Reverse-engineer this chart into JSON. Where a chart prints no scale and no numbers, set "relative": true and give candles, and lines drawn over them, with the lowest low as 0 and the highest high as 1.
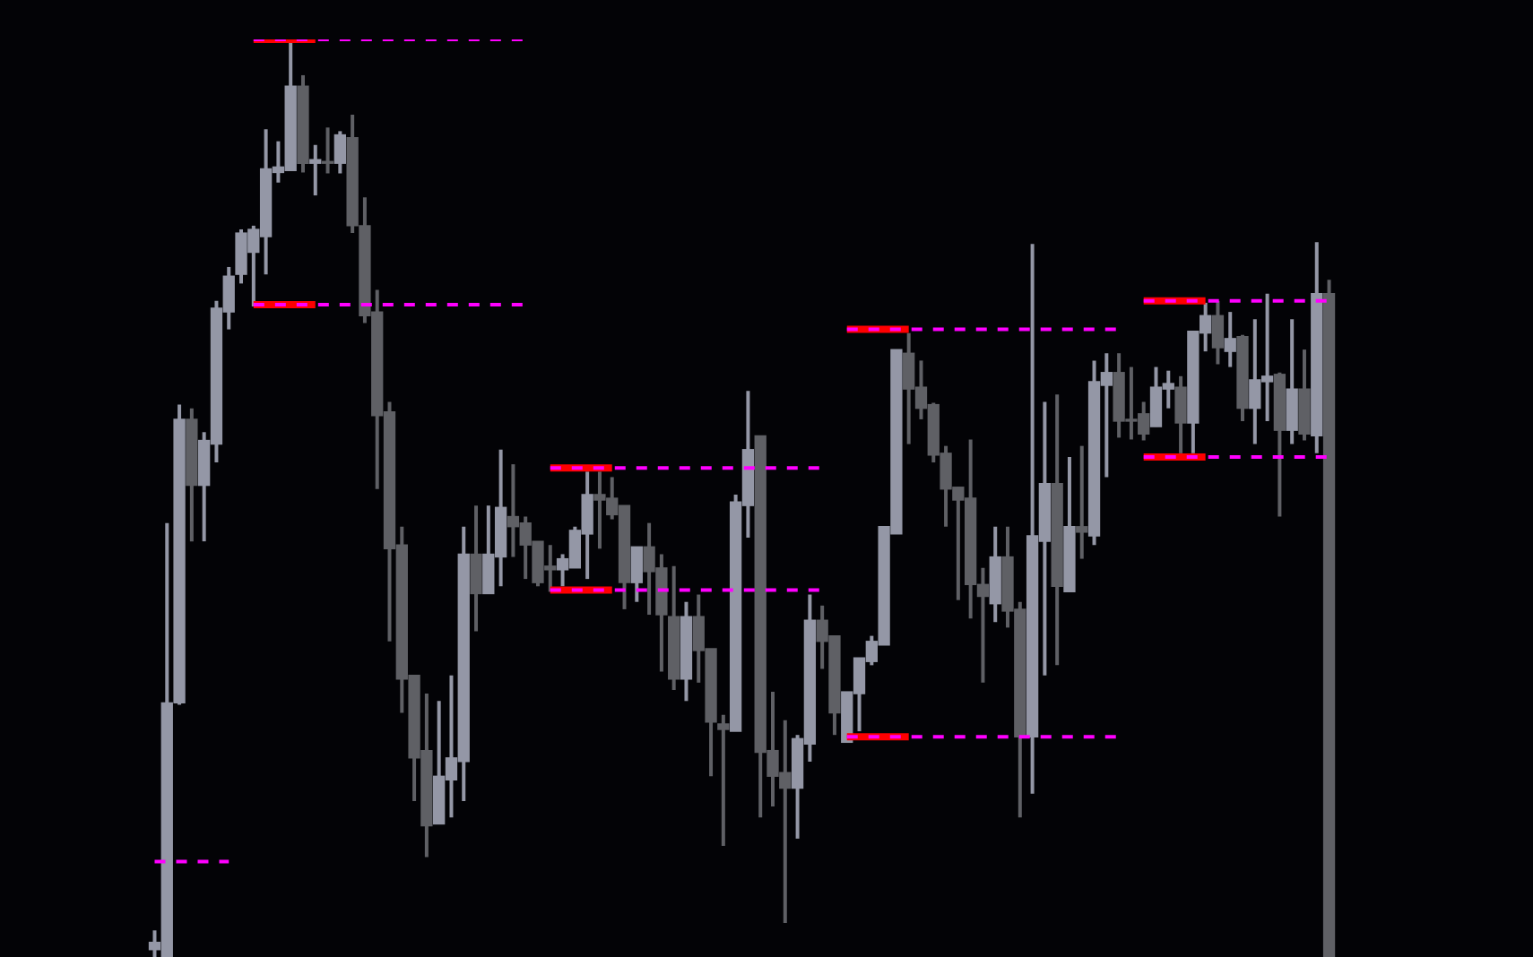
{
  "chart_data": {
    "type": "candlestick",
    "relative": true,
    "categories": [
      null,
      null,
      null,
      null,
      null,
      null,
      null,
      null,
      null,
      null,
      null,
      null,
      null,
      null,
      null,
      null,
      null,
      null,
      null,
      null,
      null,
      null,
      null,
      null,
      null,
      null,
      null,
      null,
      null,
      null,
      null,
      null,
      null,
      null,
      null,
      null,
      null,
      null,
      null,
      null,
      null,
      null,
      null,
      null,
      null,
      null,
      null,
      null,
      null,
      null,
      null,
      null,
      null,
      null,
      null,
      null,
      null,
      null,
      null,
      null,
      null,
      null,
      null,
      null,
      null,
      null,
      null,
      null,
      null,
      null,
      null,
      null,
      null,
      null,
      null,
      null,
      null,
      null,
      null,
      null,
      null,
      null,
      null,
      null,
      null,
      null,
      null,
      null,
      null,
      null,
      null,
      null,
      null,
      null,
      null,
      null
    ],
    "ohlc": [
      [
        0.008,
        0.029,
        0,
        0.016
      ],
      [
        0,
        0.473,
        0,
        0.277
      ],
      [
        0.277,
        0.602,
        0.275,
        0.586
      ],
      [
        0.586,
        0.598,
        0.453,
        0.514
      ],
      [
        0.514,
        0.572,
        0.453,
        0.563
      ],
      [
        0.559,
        0.715,
        0.539,
        0.707
      ],
      [
        0.703,
        0.752,
        0.684,
        0.742
      ],
      [
        0.744,
        0.793,
        0.734,
        0.789
      ],
      [
        0.768,
        0.797,
        0.709,
        0.793
      ],
      [
        0.785,
        0.902,
        0.744,
        0.859
      ],
      [
        0.855,
        0.889,
        0.844,
        0.861
      ],
      [
        0.857,
        1,
        0.857,
        0.949
      ],
      [
        0.949,
        0.961,
        0.855,
        0.865
      ],
      [
        0.865,
        0.885,
        0.83,
        0.869
      ],
      [
        0.867,
        0.904,
        0.854,
        0.865
      ],
      [
        0.865,
        0.9,
        0.854,
        0.896
      ],
      [
        0.893,
        0.918,
        0.789,
        0.797
      ],
      [
        0.797,
        0.828,
        0.691,
        0.699
      ],
      [
        0.703,
        0.727,
        0.51,
        0.59
      ],
      [
        0.594,
        0.605,
        0.344,
        0.445
      ],
      [
        0.449,
        0.469,
        0.266,
        0.303
      ],
      [
        0.307,
        0.307,
        0.17,
        0.217
      ],
      [
        0.225,
        0.287,
        0.109,
        0.143
      ],
      [
        0.145,
        0.279,
        0.145,
        0.197
      ],
      [
        0.193,
        0.307,
        0.152,
        0.217
      ],
      [
        0.213,
        0.469,
        0.17,
        0.439
      ],
      [
        0.439,
        0.492,
        0.355,
        0.396
      ],
      [
        0.396,
        0.492,
        0.396,
        0.439
      ],
      [
        0.436,
        0.553,
        0.404,
        0.49
      ],
      [
        0.48,
        0.537,
        0.436,
        0.469
      ],
      [
        0.473,
        0.48,
        0.412,
        0.449
      ],
      [
        0.453,
        0.453,
        0.404,
        0.408
      ],
      [
        0.426,
        0.449,
        0.398,
        0.422
      ],
      [
        0.422,
        0.439,
        0.404,
        0.434
      ],
      [
        0.424,
        0.469,
        0.424,
        0.465
      ],
      [
        0.461,
        0.529,
        0.412,
        0.504
      ],
      [
        0.504,
        0.529,
        0.445,
        0.498
      ],
      [
        0.5,
        0.523,
        0.477,
        0.482
      ],
      [
        0.492,
        0.492,
        0.379,
        0.408
      ],
      [
        0.408,
        0.447,
        0.387,
        0.447
      ],
      [
        0.447,
        0.473,
        0.373,
        0.42
      ],
      [
        0.424,
        0.439,
        0.311,
        0.373
      ],
      [
        0.371,
        0.426,
        0.291,
        0.303
      ],
      [
        0.303,
        0.387,
        0.279,
        0.371
      ],
      [
        0.371,
        0.395,
        0.299,
        0.334
      ],
      [
        0.336,
        0.336,
        0.197,
        0.256
      ],
      [
        0.254,
        0.264,
        0.121,
        0.248
      ],
      [
        0.246,
        0.504,
        0.246,
        0.496
      ],
      [
        0.492,
        0.617,
        0.457,
        0.553
      ],
      [
        0.568,
        0.568,
        0.152,
        0.223
      ],
      [
        0.225,
        0.289,
        0.164,
        0.197
      ],
      [
        0.201,
        0.258,
        0.037,
        0.184
      ],
      [
        0.184,
        0.242,
        0.129,
        0.238
      ],
      [
        0.232,
        0.395,
        0.213,
        0.367
      ],
      [
        0.367,
        0.383,
        0.314,
        0.344
      ],
      [
        0.35,
        0.35,
        0.242,
        0.266
      ],
      [
        0.234,
        0.289,
        0.234,
        0.289
      ],
      [
        0.287,
        0.326,
        0.246,
        0.326
      ],
      [
        0.322,
        0.35,
        0.318,
        0.344
      ],
      [
        0.34,
        0.469,
        0.34,
        0.469
      ],
      [
        0.461,
        0.662,
        0.461,
        0.662
      ],
      [
        0.658,
        0.68,
        0.559,
        0.619
      ],
      [
        0.621,
        0.65,
        0.586,
        0.598
      ],
      [
        0.602,
        0.604,
        0.539,
        0.547
      ],
      [
        0.549,
        0.557,
        0.469,
        0.51
      ],
      [
        0.512,
        0.512,
        0.389,
        0.498
      ],
      [
        0.5,
        0.564,
        0.369,
        0.406
      ],
      [
        0.406,
        0.424,
        0.299,
        0.393
      ],
      [
        0.385,
        0.469,
        0.365,
        0.436
      ],
      [
        0.436,
        0.469,
        0.359,
        0.377
      ],
      [
        0.379,
        0.387,
        0.152,
        0.24
      ],
      [
        0.24,
        0.777,
        0.178,
        0.459
      ],
      [
        0.453,
        0.605,
        0.307,
        0.516
      ],
      [
        0.516,
        0.613,
        0.318,
        0.404
      ],
      [
        0.398,
        0.545,
        0.398,
        0.469
      ],
      [
        0.469,
        0.557,
        0.434,
        0.463
      ],
      [
        0.459,
        0.65,
        0.449,
        0.627
      ],
      [
        0.623,
        0.658,
        0.523,
        0.637
      ],
      [
        0.637,
        0.658,
        0.566,
        0.584
      ],
      [
        0.586,
        0.643,
        0.564,
        0.584
      ],
      [
        0.592,
        0.605,
        0.563,
        0.57
      ],
      [
        0.578,
        0.643,
        0.578,
        0.621
      ],
      [
        0.619,
        0.639,
        0.598,
        0.625
      ],
      [
        0.621,
        0.633,
        0.549,
        0.582
      ],
      [
        0.582,
        0.682,
        0.549,
        0.682
      ],
      [
        0.68,
        0.713,
        0.66,
        0.699
      ],
      [
        0.699,
        0.715,
        0.646,
        0.664
      ],
      [
        0.66,
        0.703,
        0.643,
        0.674
      ],
      [
        0.676,
        0.678,
        0.584,
        0.598
      ],
      [
        0.598,
        0.695,
        0.559,
        0.629
      ],
      [
        0.627,
        0.723,
        0.584,
        0.633
      ],
      [
        0.635,
        0.637,
        0.48,
        0.574
      ],
      [
        0.574,
        0.695,
        0.559,
        0.619
      ],
      [
        0.619,
        0.662,
        0.563,
        0.57
      ],
      [
        0.568,
        0.779,
        0.549,
        0.723
      ],
      [
        0.723,
        0.738,
        0,
        0
      ]
    ],
    "colors": [
      "#9497a6",
      "#9497a6",
      "#9497a6",
      "#5f6065",
      "#9497a6",
      "#9497a6",
      "#9497a6",
      "#9497a6",
      "#9497a6",
      "#9497a6",
      "#9497a6",
      "#9497a6",
      "#5f6065",
      "#9497a6",
      "#5f6065",
      "#9497a6",
      "#5f6065",
      "#5f6065",
      "#5f6065",
      "#5f6065",
      "#5f6065",
      "#5f6065",
      "#5f6065",
      "#9497a6",
      "#9497a6",
      "#9497a6",
      "#5f6065",
      "#9497a6",
      "#9497a6",
      "#5f6065",
      "#5f6065",
      "#5f6065",
      "#5f6065",
      "#9497a6",
      "#9497a6",
      "#9497a6",
      "#5f6065",
      "#5f6065",
      "#5f6065",
      "#9497a6",
      "#5f6065",
      "#5f6065",
      "#5f6065",
      "#9497a6",
      "#5f6065",
      "#5f6065",
      "#5f6065",
      "#9497a6",
      "#9497a6",
      "#5f6065",
      "#5f6065",
      "#5f6065",
      "#9497a6",
      "#9497a6",
      "#5f6065",
      "#5f6065",
      "#9497a6",
      "#9497a6",
      "#9497a6",
      "#9497a6",
      "#9497a6",
      "#5f6065",
      "#5f6065",
      "#5f6065",
      "#5f6065",
      "#5f6065",
      "#5f6065",
      "#5f6065",
      "#9497a6",
      "#5f6065",
      "#5f6065",
      "#9497a6",
      "#9497a6",
      "#5f6065",
      "#9497a6",
      "#5f6065",
      "#9497a6",
      "#9497a6",
      "#5f6065",
      "#5f6065",
      "#5f6065",
      "#9497a6",
      "#9497a6",
      "#5f6065",
      "#9497a6",
      "#9497a6",
      "#5f6065",
      "#9497a6",
      "#5f6065",
      "#9497a6",
      "#9497a6",
      "#5f6065",
      "#9497a6",
      "#5f6065",
      "#9497a6",
      "#5f6065"
    ],
    "series": [
      {
        "type": "line",
        "color": "#ff00ff",
        "line_style": "dashed",
        "values": [
          0.104,
          0.104,
          0.104,
          0.104,
          0.104,
          0.104,
          0.104,
          null,
          1,
          1,
          1,
          1,
          1,
          1,
          1,
          1,
          1,
          1,
          1,
          1,
          1,
          1,
          1,
          1,
          1,
          1,
          1,
          1,
          1,
          1,
          1,
          null,
          0.533,
          0.533,
          0.533,
          0.533,
          0.533,
          0.533,
          0.533,
          0.533,
          0.533,
          0.533,
          0.533,
          0.533,
          0.533,
          0.533,
          0.533,
          0.533,
          0.533,
          0.533,
          0.533,
          0.533,
          0.533,
          0.533,
          0.533,
          null,
          0.684,
          0.684,
          0.684,
          0.684,
          0.684,
          0.684,
          0.684,
          0.684,
          0.684,
          0.684,
          0.684,
          0.684,
          0.684,
          0.684,
          0.684,
          0.684,
          0.684,
          0.684,
          0.684,
          0.684,
          0.684,
          0.684,
          0.684,
          null,
          0.715,
          0.715,
          0.715,
          0.715,
          0.715,
          0.715,
          0.715,
          0.715,
          0.715,
          0.715,
          0.715,
          0.715,
          0.715,
          0.715,
          0.715,
          0.715
        ]
      },
      {
        "type": "line",
        "color": "#ff00ff",
        "line_style": "dashed",
        "values": [
          null,
          null,
          null,
          null,
          null,
          null,
          null,
          null,
          0.711,
          0.711,
          0.711,
          0.711,
          0.711,
          0.711,
          0.711,
          0.711,
          0.711,
          0.711,
          0.711,
          0.711,
          0.711,
          0.711,
          0.711,
          0.711,
          0.711,
          0.711,
          0.711,
          0.711,
          0.711,
          0.711,
          0.711,
          null,
          0.4,
          0.4,
          0.4,
          0.4,
          0.4,
          0.4,
          0.4,
          0.4,
          0.4,
          0.4,
          0.4,
          0.4,
          0.4,
          0.4,
          0.4,
          0.4,
          0.4,
          0.4,
          0.4,
          0.4,
          0.4,
          0.4,
          0.4,
          null,
          0.24,
          0.24,
          0.24,
          0.24,
          0.24,
          0.24,
          0.24,
          0.24,
          0.24,
          0.24,
          0.24,
          0.24,
          0.24,
          0.24,
          0.24,
          0.24,
          0.24,
          0.24,
          0.24,
          0.24,
          0.24,
          0.24,
          0.24,
          null,
          0.545,
          0.545,
          0.545,
          0.545,
          0.545,
          0.545,
          0.545,
          0.545,
          0.545,
          0.545,
          0.545,
          0.545,
          0.545,
          0.545,
          0.545,
          0.545
        ]
      },
      {
        "type": "line",
        "color": "#ff0000",
        "line_style": "solid",
        "values": [
          null,
          null,
          null,
          null,
          null,
          null,
          null,
          null,
          1,
          1,
          1,
          1,
          1,
          1,
          null,
          null,
          null,
          null,
          null,
          null,
          null,
          null,
          null,
          null,
          null,
          null,
          null,
          null,
          null,
          null,
          null,
          null,
          0.533,
          0.533,
          0.533,
          0.533,
          0.533,
          0.533,
          null,
          null,
          null,
          null,
          null,
          null,
          null,
          null,
          null,
          null,
          null,
          null,
          null,
          null,
          null,
          null,
          null,
          null,
          0.684,
          0.684,
          0.684,
          0.684,
          0.684,
          0.684,
          null,
          null,
          null,
          null,
          null,
          null,
          null,
          null,
          null,
          null,
          null,
          null,
          null,
          null,
          null,
          null,
          null,
          null,
          0.715,
          0.715,
          0.715,
          0.715,
          0.715,
          0.715,
          null,
          null,
          null,
          null,
          null,
          null,
          null,
          null,
          null,
          null
        ]
      },
      {
        "type": "line",
        "color": "#ff0000",
        "line_style": "solid",
        "values": [
          null,
          null,
          null,
          null,
          null,
          null,
          null,
          null,
          0.711,
          0.711,
          0.711,
          0.711,
          0.711,
          0.711,
          null,
          null,
          null,
          null,
          null,
          null,
          null,
          null,
          null,
          null,
          null,
          null,
          null,
          null,
          null,
          null,
          null,
          null,
          0.4,
          0.4,
          0.4,
          0.4,
          0.4,
          0.4,
          null,
          null,
          null,
          null,
          null,
          null,
          null,
          null,
          null,
          null,
          null,
          null,
          null,
          null,
          null,
          null,
          null,
          null,
          0.24,
          0.24,
          0.24,
          0.24,
          0.24,
          0.24,
          null,
          null,
          null,
          null,
          null,
          null,
          null,
          null,
          null,
          null,
          null,
          null,
          null,
          null,
          null,
          null,
          null,
          null,
          0.545,
          0.545,
          0.545,
          0.545,
          0.545,
          0.545,
          null,
          null,
          null,
          null,
          null,
          null,
          null,
          null,
          null,
          null
        ]
      }
    ]
  }
}
